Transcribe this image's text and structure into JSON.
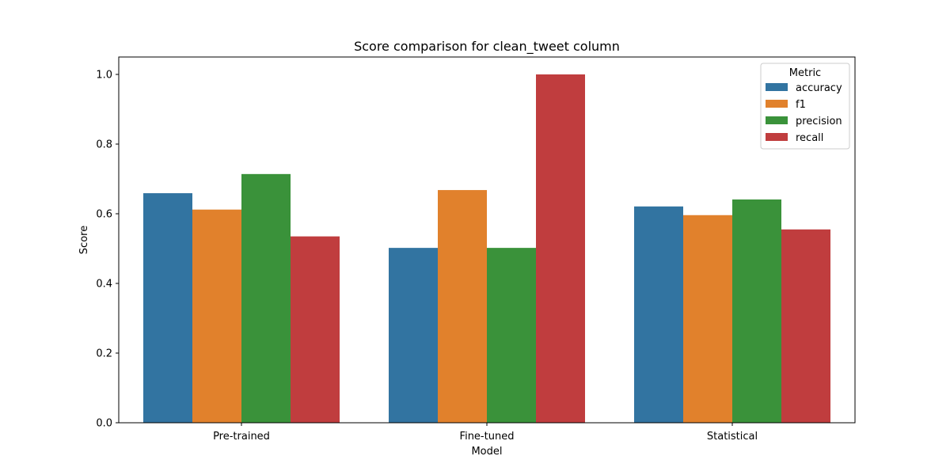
{
  "chart_data": {
    "type": "bar",
    "title": "Score comparison for clean_tweet column",
    "xlabel": "Model",
    "ylabel": "Score",
    "categories": [
      "Pre-trained",
      "Fine-tuned",
      "Statistical"
    ],
    "ylim": [
      0,
      1.05
    ],
    "yticks": [
      0.0,
      0.2,
      0.4,
      0.6,
      0.8,
      1.0
    ],
    "ytick_labels": [
      "0.0",
      "0.2",
      "0.4",
      "0.6",
      "0.8",
      "1.0"
    ],
    "grid": false,
    "legend": {
      "title": "Metric",
      "placement": "top-right"
    },
    "series": [
      {
        "name": "accuracy",
        "color": "#3274a1",
        "values": [
          0.659,
          0.502,
          0.621
        ]
      },
      {
        "name": "f1",
        "color": "#e1812c",
        "values": [
          0.612,
          0.668,
          0.596
        ]
      },
      {
        "name": "precision",
        "color": "#3a923a",
        "values": [
          0.714,
          0.502,
          0.641
        ]
      },
      {
        "name": "recall",
        "color": "#c03d3e",
        "values": [
          0.535,
          1.0,
          0.555
        ]
      }
    ]
  }
}
